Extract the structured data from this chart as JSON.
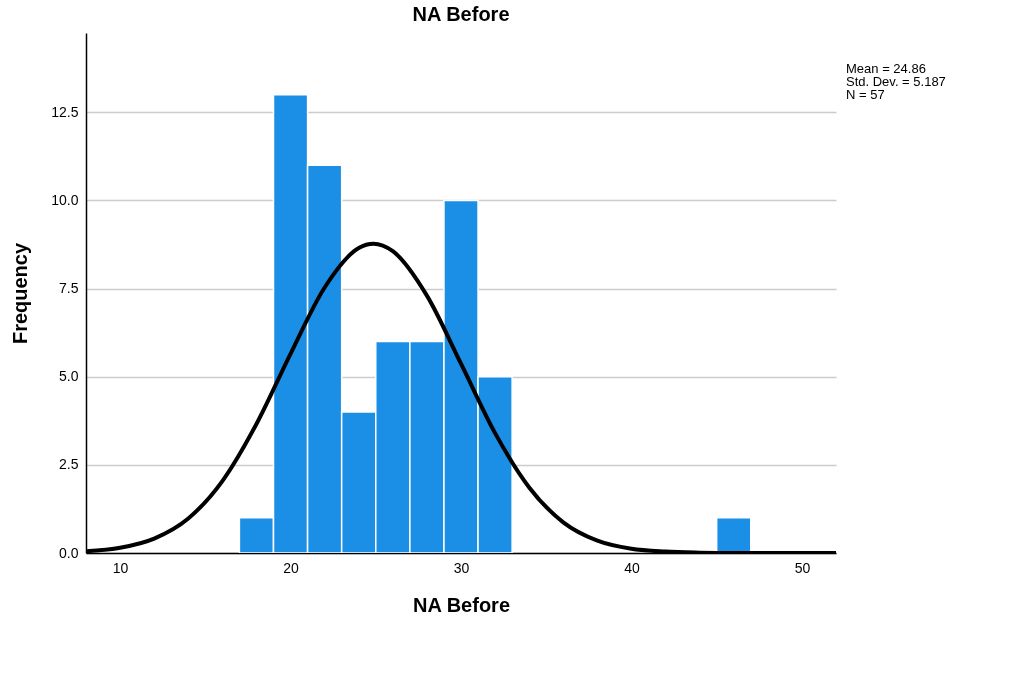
{
  "chart_data": {
    "type": "histogram",
    "title": "NA Before",
    "xlabel": "NA Before",
    "ylabel": "Frequency",
    "bins": [
      17,
      19,
      21,
      23,
      25,
      27,
      29,
      31,
      33,
      35,
      37,
      39,
      41,
      43,
      45,
      47
    ],
    "series": [
      {
        "color": "#1b8ee6",
        "values": [
          1,
          13,
          11,
          4,
          6,
          6,
          10,
          5,
          0,
          0,
          0,
          0,
          0,
          0,
          1
        ]
      },
      {
        "type": "line",
        "color": "#000000",
        "x": [
          8,
          10,
          12,
          14,
          16,
          18,
          20,
          22,
          24,
          24.86,
          26,
          28,
          30,
          32,
          34,
          36,
          38,
          40,
          42,
          44,
          46,
          48,
          50,
          52
        ],
        "values": [
          0.05,
          0.15,
          0.41,
          0.98,
          2.04,
          3.66,
          5.65,
          7.53,
          8.65,
          8.77,
          8.56,
          7.3,
          5.37,
          3.4,
          1.86,
          0.87,
          0.35,
          0.12,
          0.04,
          0.01,
          0,
          0,
          0,
          0
        ]
      }
    ],
    "xlim": [
      8,
      52
    ],
    "ylim": [
      0,
      14.75
    ],
    "xticks": [
      10,
      20,
      30,
      40,
      50
    ],
    "yticks": [
      {
        "value": 0,
        "label": "0.0"
      },
      {
        "value": 2.5,
        "label": "2.5"
      },
      {
        "value": 5,
        "label": "5.0"
      },
      {
        "value": 7.5,
        "label": "7.5"
      },
      {
        "value": 10,
        "label": "10.0"
      },
      {
        "value": 12.5,
        "label": "12.5"
      }
    ],
    "grid": "y",
    "line_style": "solid",
    "marker": "none",
    "annotations": [
      "Mean = 24.86",
      "Std. Dev. = 5.187",
      "N = 57"
    ]
  }
}
